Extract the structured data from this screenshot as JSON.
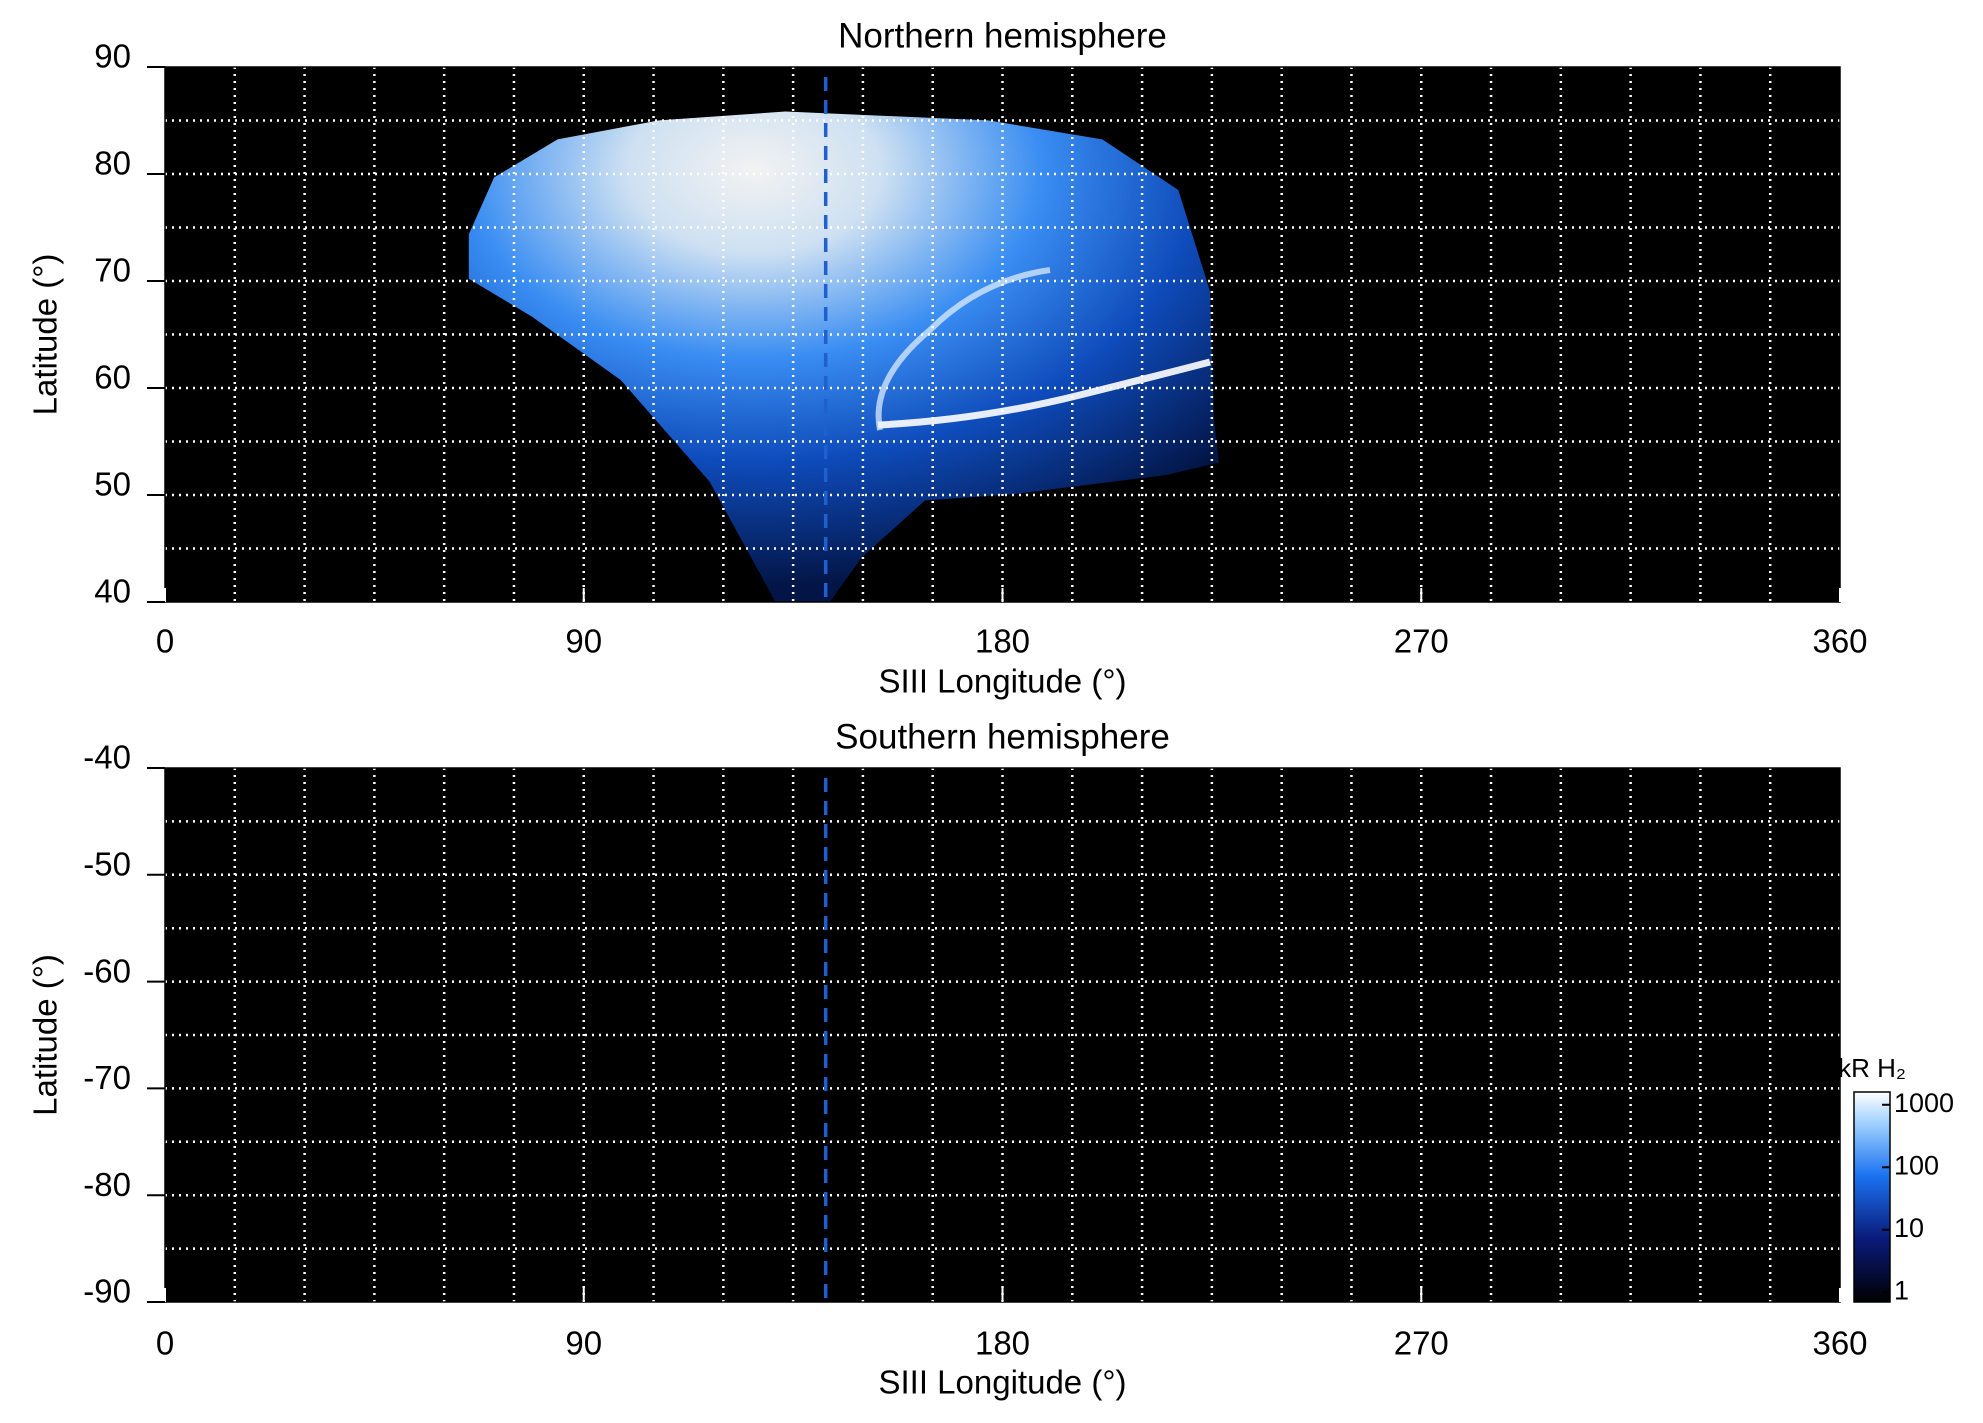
{
  "chart_data": [
    {
      "type": "image",
      "title": "Northern hemisphere",
      "xlabel": "SIII Longitude (°)",
      "ylabel": "Latitude (°)",
      "xlim": [
        0,
        360
      ],
      "xticks": [
        0,
        90,
        180,
        270,
        360
      ],
      "ylim": [
        40,
        90
      ],
      "yticks": [
        40,
        50,
        60,
        70,
        80,
        90
      ],
      "xgrid": [
        15,
        30,
        45,
        60,
        75,
        90,
        105,
        120,
        135,
        150,
        165,
        180,
        195,
        210,
        225,
        240,
        255,
        270,
        285,
        300,
        315,
        330,
        345
      ],
      "ygrid": [
        45,
        50,
        55,
        60,
        65,
        70,
        75,
        80,
        85
      ],
      "marker_x": 142,
      "marker_color": "#1f5fd0"
    },
    {
      "type": "image",
      "title": "Southern hemisphere",
      "xlabel": "SIII Longitude (°)",
      "ylabel": "Latitude (°)",
      "xlim": [
        0,
        360
      ],
      "xticks": [
        0,
        90,
        180,
        270,
        360
      ],
      "ylim": [
        -90,
        -40
      ],
      "yticks": [
        -40,
        -50,
        -60,
        -70,
        -80,
        -90
      ],
      "xgrid": [
        15,
        30,
        45,
        60,
        75,
        90,
        105,
        120,
        135,
        150,
        165,
        180,
        195,
        210,
        225,
        240,
        255,
        270,
        285,
        300,
        315,
        330,
        345
      ],
      "ygrid": [
        -45,
        -50,
        -55,
        -60,
        -65,
        -70,
        -75,
        -80,
        -85
      ],
      "marker_x": 142,
      "marker_color": "#1f5fd0",
      "colorbar": {
        "title": "kR H₂",
        "log": true,
        "ylim": [
          0.7,
          1600
        ],
        "yticks": [
          1,
          10,
          100,
          1000
        ]
      }
    }
  ]
}
